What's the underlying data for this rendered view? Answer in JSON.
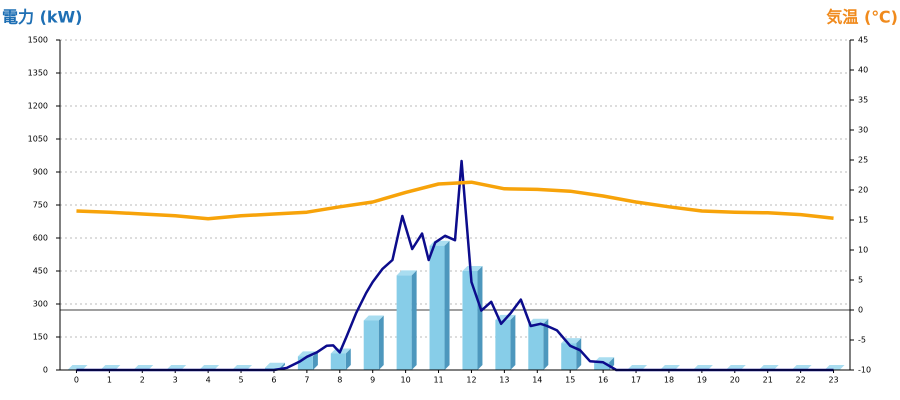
{
  "chart_data": {
    "type": "combo",
    "ylabel": "電力 (kW)",
    "y2label": "気温 (℃)",
    "categories": [
      "0",
      "1",
      "2",
      "3",
      "4",
      "5",
      "6",
      "7",
      "8",
      "9",
      "10",
      "11",
      "12",
      "13",
      "14",
      "15",
      "16",
      "17",
      "18",
      "19",
      "20",
      "21",
      "22",
      "23"
    ],
    "ylim": [
      0,
      1500
    ],
    "yticks": [
      0,
      150,
      300,
      450,
      600,
      750,
      900,
      1050,
      1200,
      1350,
      1500
    ],
    "y2lim": [
      -10,
      45
    ],
    "y2ticks": [
      -10,
      -5,
      0,
      5,
      10,
      15,
      20,
      25,
      30,
      35,
      40,
      45
    ],
    "y2refline": 0,
    "grid": true,
    "series": [
      {
        "type": "bar",
        "color": "#87cde8",
        "values": [
          0,
          0,
          0,
          0,
          0,
          0,
          10,
          62,
          75,
          225,
          430,
          565,
          450,
          228,
          210,
          122,
          35,
          0,
          0,
          0,
          0,
          0,
          0,
          0
        ]
      },
      {
        "type": "line",
        "color": "#0c0c8c",
        "x": [
          0,
          1,
          2,
          3,
          4,
          5,
          6,
          6.4,
          6.8,
          7,
          7.3,
          7.6,
          7.8,
          8,
          8.2,
          8.5,
          8.8,
          9,
          9.3,
          9.6,
          9.9,
          10.2,
          10.5,
          10.7,
          10.9,
          11.2,
          11.5,
          11.7,
          12,
          12.3,
          12.6,
          12.9,
          13.2,
          13.5,
          13.8,
          14.1,
          14.3,
          14.6,
          15,
          15.3,
          15.6,
          16,
          16.4,
          17,
          18,
          19,
          20,
          21,
          22,
          23
        ],
        "values": [
          0,
          0,
          0,
          0,
          0,
          0,
          0,
          10,
          40,
          60,
          80,
          110,
          112,
          80,
          150,
          260,
          350,
          400,
          460,
          500,
          700,
          550,
          620,
          500,
          580,
          610,
          590,
          950,
          400,
          270,
          310,
          210,
          260,
          320,
          200,
          210,
          200,
          180,
          110,
          90,
          40,
          35,
          0,
          0,
          0,
          0,
          0,
          0,
          0,
          0
        ]
      },
      {
        "type": "line",
        "axis": "y2",
        "color": "#f7a30a",
        "values": [
          16.5,
          16.3,
          16,
          15.7,
          15.2,
          15.7,
          16,
          16.3,
          17.2,
          18,
          19.6,
          21,
          21.3,
          20.2,
          20.1,
          19.8,
          19,
          18,
          17.2,
          16.5,
          16.3,
          16.2,
          15.9,
          15.3
        ]
      }
    ]
  }
}
